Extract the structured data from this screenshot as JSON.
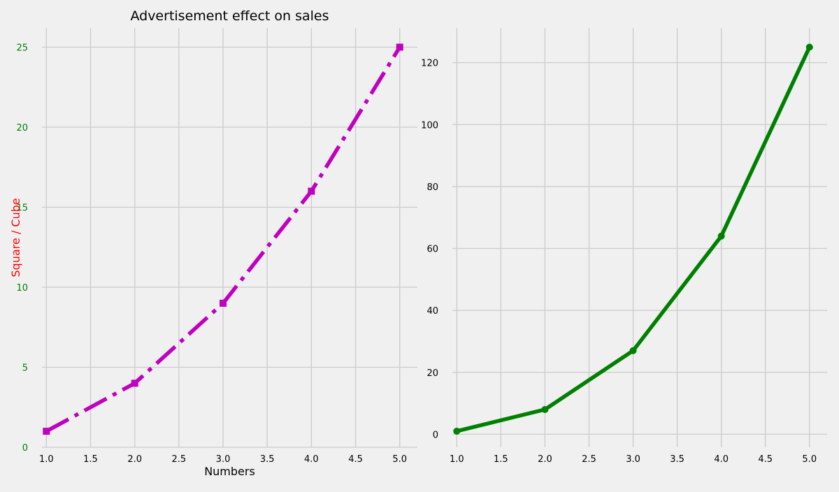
{
  "chart_data": [
    {
      "type": "line",
      "title": "Advertisement effect on sales",
      "xlabel": "Numbers",
      "ylabel": "Square / Cube",
      "x": [
        1,
        2,
        3,
        4,
        5
      ],
      "series": [
        {
          "values": [
            1,
            4,
            9,
            16,
            25
          ],
          "color": "#bf00bf",
          "marker": "square",
          "linestyle": "dash-dot"
        }
      ],
      "xlim": [
        0.95,
        5.2
      ],
      "ylim": [
        0,
        26.2
      ],
      "xticks": [
        "1.0",
        "1.5",
        "2.0",
        "2.5",
        "3.0",
        "3.5",
        "4.0",
        "4.5",
        "5.0"
      ],
      "yticks": [
        "0",
        "5",
        "10",
        "15",
        "20",
        "25"
      ],
      "ylabel_color": "#ff0000",
      "ytick_color": "#008000",
      "grid": true
    },
    {
      "type": "line",
      "title": "",
      "xlabel": "",
      "ylabel": "",
      "x": [
        1,
        2,
        3,
        4,
        5
      ],
      "series": [
        {
          "values": [
            1,
            8,
            27,
            64,
            125
          ],
          "color": "#008000",
          "marker": "circle",
          "linestyle": "solid"
        }
      ],
      "xlim": [
        0.95,
        5.2
      ],
      "ylim": [
        -4.2,
        131.2
      ],
      "xticks": [
        "1.0",
        "1.5",
        "2.0",
        "2.5",
        "3.0",
        "3.5",
        "4.0",
        "4.5",
        "5.0"
      ],
      "yticks": [
        "0",
        "20",
        "40",
        "60",
        "80",
        "100",
        "120"
      ],
      "grid": true
    }
  ]
}
